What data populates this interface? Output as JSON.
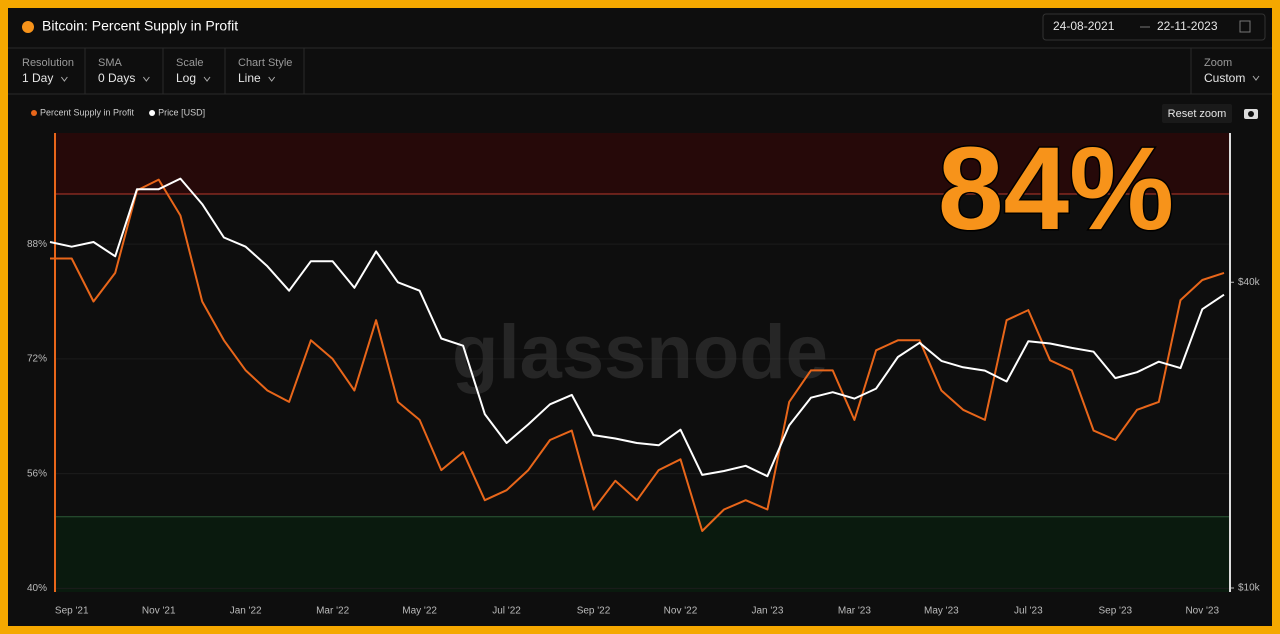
{
  "header": {
    "date_from": "24-08-2021",
    "date_to": "22-11-2023"
  },
  "toolbar": {
    "controls": [
      {
        "label": "Resolution",
        "value": "1 Day"
      },
      {
        "label": "SMA",
        "value": "0 Days"
      },
      {
        "label": "Scale",
        "value": "Log"
      },
      {
        "label": "Chart Style",
        "value": "Line"
      }
    ],
    "zoom": {
      "label": "Zoom",
      "value": "Custom"
    },
    "reset_zoom": "Reset zoom"
  },
  "chart_data": {
    "type": "line",
    "title": "Bitcoin: Percent Supply in Profit",
    "annotation": "84%",
    "watermark": "glassnode",
    "categories": [
      null,
      "Sep '21",
      null,
      null,
      null,
      "Nov '21",
      null,
      null,
      null,
      "Jan '22",
      null,
      null,
      null,
      "Mar '22",
      null,
      null,
      null,
      "May '22",
      null,
      null,
      null,
      "Jul '22",
      null,
      null,
      null,
      "Sep '22",
      null,
      null,
      null,
      "Nov '22",
      null,
      null,
      null,
      "Jan '23",
      null,
      null,
      null,
      "Mar '23",
      null,
      null,
      null,
      "May '23",
      null,
      null,
      null,
      "Jul '23",
      null,
      null,
      null,
      "Sep '23",
      null,
      null,
      null,
      "Nov '23",
      null
    ],
    "series": [
      {
        "name": "Percent Supply in Profit",
        "color": "#e8661a",
        "values": [
          86,
          86,
          80,
          84,
          95.5,
          97,
          92,
          80,
          74.6,
          70.4,
          67.6,
          66,
          74.6,
          72,
          67.6,
          77.4,
          66,
          63.5,
          56.5,
          59,
          52.3,
          53.7,
          56.5,
          60.7,
          62,
          51,
          55,
          52.3,
          56.5,
          58,
          48,
          51,
          52.3,
          51,
          66,
          70.4,
          70.4,
          63.5,
          73.2,
          74.6,
          74.6,
          67.6,
          64.9,
          63.5,
          77.4,
          78.8,
          71.8,
          70.4,
          62,
          60.7,
          64.9,
          66,
          80.2,
          83,
          84
        ]
      },
      {
        "name": "Price [USD]",
        "color": "#ffffff",
        "axis": "y2",
        "values": [
          48000,
          47000,
          48000,
          45000,
          61000,
          61000,
          64000,
          57000,
          49000,
          47000,
          43000,
          38500,
          44000,
          44000,
          39000,
          46000,
          40000,
          38500,
          31000,
          30000,
          22000,
          19300,
          21000,
          23000,
          24000,
          20000,
          19700,
          19300,
          19100,
          20500,
          16700,
          17000,
          17400,
          16600,
          20900,
          23700,
          24300,
          23600,
          24700,
          28500,
          30400,
          28000,
          27200,
          26800,
          25500,
          30600,
          30300,
          29700,
          29200,
          25900,
          26600,
          27900,
          27100,
          35400,
          37800
        ]
      }
    ],
    "ylim": [
      39.5,
      103.5
    ],
    "yticks": [
      {
        "value": 40,
        "label": "40%"
      },
      {
        "value": 56,
        "label": "56%"
      },
      {
        "value": 72,
        "label": "72%"
      },
      {
        "value": 88,
        "label": "88%"
      }
    ],
    "y2lim": [
      9820,
      78700
    ],
    "y2scale": "log",
    "y2ticks": [
      {
        "value": 10000,
        "label": "$10k"
      },
      {
        "value": 40000,
        "label": "$40k"
      }
    ],
    "upper_band": 95,
    "lower_band": 50,
    "grid": true
  }
}
